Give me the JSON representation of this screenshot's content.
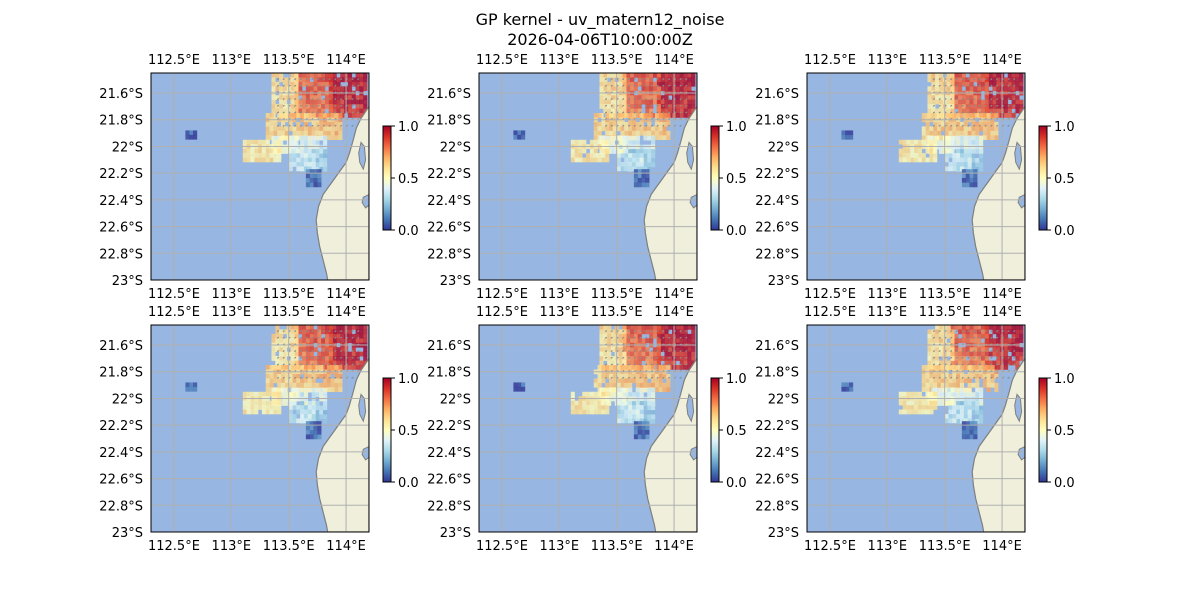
{
  "figure": {
    "title": "GP kernel - uv_matern12_noise",
    "subtitle": "2026-04-06T10:00:00Z"
  },
  "colors": {
    "ocean": "#97b6e1",
    "land": "#efefdc",
    "coast": "#7f7f7f",
    "grid": "#b0b0b0",
    "arrow": "#8c8c8c"
  },
  "chart_data": {
    "type": "heatmap",
    "panels": 6,
    "layout": "2x3",
    "xlim": [
      112.3,
      114.2
    ],
    "ylim": [
      -23.0,
      -21.45
    ],
    "x_ticks": [
      112.5,
      113.0,
      113.5,
      114.0
    ],
    "x_tick_labels": [
      "112.5°E",
      "113°E",
      "113.5°E",
      "114°E"
    ],
    "y_ticks": [
      -21.6,
      -21.8,
      -22.0,
      -22.2,
      -22.4,
      -22.6,
      -22.8,
      -23.0
    ],
    "y_tick_labels": [
      "21.6°S",
      "21.8°S",
      "22°S",
      "22.2°S",
      "22.4°S",
      "22.6°S",
      "22.8°S",
      "23°S"
    ],
    "colorbar": {
      "range": [
        0.0,
        1.0
      ],
      "ticks": [
        0.0,
        0.5,
        1.0
      ],
      "tick_labels": [
        "0.0",
        "0.5",
        "1.0"
      ],
      "colormap": "RdYlBu_r"
    },
    "cell_size_deg": [
      0.0333,
      0.0333
    ],
    "field_regions": [
      {
        "lon": [
          113.85,
          114.15
        ],
        "lat": [
          -21.75,
          -21.45
        ],
        "value": 0.9
      },
      {
        "lon": [
          113.55,
          113.85
        ],
        "lat": [
          -21.75,
          -21.45
        ],
        "value": 0.8
      },
      {
        "lon": [
          113.35,
          113.55
        ],
        "lat": [
          -21.75,
          -21.45
        ],
        "value": 0.6
      },
      {
        "lon": [
          113.3,
          113.95
        ],
        "lat": [
          -21.92,
          -21.75
        ],
        "value": 0.68
      },
      {
        "lon": [
          113.5,
          113.8
        ],
        "lat": [
          -22.02,
          -21.92
        ],
        "value": 0.4
      },
      {
        "lon": [
          113.35,
          113.55
        ],
        "lat": [
          -22.05,
          -21.92
        ],
        "value": 0.45
      },
      {
        "lon": [
          113.6,
          113.82
        ],
        "lat": [
          -22.17,
          -22.02
        ],
        "value": 0.28
      },
      {
        "lon": [
          113.1,
          113.4
        ],
        "lat": [
          -22.1,
          -21.95
        ],
        "value": 0.55
      },
      {
        "lon": [
          113.5,
          113.7
        ],
        "lat": [
          -22.15,
          -22.05
        ],
        "value": 0.35
      },
      {
        "lon": [
          113.65,
          113.78
        ],
        "lat": [
          -22.3,
          -22.17
        ],
        "value": 0.08
      },
      {
        "lon": [
          112.6,
          112.67
        ],
        "lat": [
          -21.92,
          -21.88
        ],
        "value": 0.05
      },
      {
        "lon": [
          114.12,
          114.2
        ],
        "lat": [
          -22.27,
          -22.22
        ],
        "value": 0.0
      }
    ]
  }
}
